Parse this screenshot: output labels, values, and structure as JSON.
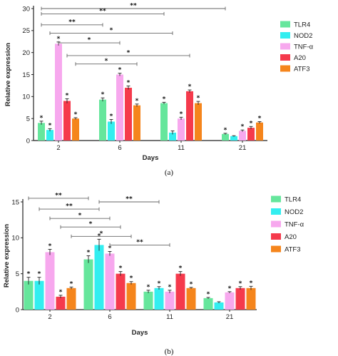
{
  "chart_data": [
    {
      "type": "bar",
      "panel_label": "(a)",
      "ylabel": "Relative expression",
      "xlabel": "Days",
      "categories": [
        "2",
        "6",
        "11",
        "21"
      ],
      "ylim": [
        0,
        30
      ],
      "yticks": [
        "0",
        "5",
        "10",
        "15",
        "20",
        "25",
        "30"
      ],
      "series": [
        {
          "name": "TLR4",
          "color": "#66e69c",
          "values": [
            4.0,
            9.3,
            8.5,
            1.5
          ],
          "errors": [
            0.4,
            0.4,
            0.2,
            0.15
          ],
          "stars": [
            "*",
            "*",
            "*",
            "*"
          ]
        },
        {
          "name": "NOD2",
          "color": "#33eef0",
          "values": [
            2.4,
            4.3,
            1.8,
            1.0
          ],
          "errors": [
            0.3,
            0.5,
            0.4,
            0.1
          ],
          "stars": [
            "*",
            "*",
            "",
            ""
          ]
        },
        {
          "name": "TNF-α",
          "color": "#f7a8ee",
          "values": [
            22.0,
            15.0,
            5.0,
            2.2
          ],
          "errors": [
            0.4,
            0.3,
            0.3,
            0.2
          ],
          "stars": [
            "*",
            "*",
            "*",
            "*"
          ]
        },
        {
          "name": "A20",
          "color": "#f53a4c",
          "values": [
            9.0,
            12.0,
            11.2,
            2.9
          ],
          "errors": [
            0.5,
            0.4,
            0.3,
            0.3
          ],
          "stars": [
            "*",
            "*",
            "*",
            "*"
          ]
        },
        {
          "name": "ATF3",
          "color": "#f5851c",
          "values": [
            5.0,
            8.0,
            8.5,
            4.1
          ],
          "errors": [
            0.2,
            0.3,
            0.4,
            0.2
          ],
          "stars": [
            "*",
            "*",
            "*",
            "*"
          ]
        }
      ],
      "comparisons": [
        {
          "from": {
            "cat": 0,
            "series": 0
          },
          "to": {
            "cat": 3,
            "series": 0
          },
          "label": "**",
          "level": 30
        },
        {
          "from": {
            "cat": 0,
            "series": 0
          },
          "to": {
            "cat": 2,
            "series": 0
          },
          "label": "**",
          "level": 28.8
        },
        {
          "from": {
            "cat": 0,
            "series": 0
          },
          "to": {
            "cat": 1,
            "series": 0
          },
          "label": "**",
          "level": 26.3
        },
        {
          "from": {
            "cat": 0,
            "series": 1
          },
          "to": {
            "cat": 2,
            "series": 1
          },
          "label": "*",
          "level": 24.4
        },
        {
          "from": {
            "cat": 0,
            "series": 2
          },
          "to": {
            "cat": 1,
            "series": 2
          },
          "label": "*",
          "level": 22.2
        },
        {
          "from": {
            "cat": 0,
            "series": 3
          },
          "to": {
            "cat": 2,
            "series": 3
          },
          "label": "*",
          "level": 19.3
        },
        {
          "from": {
            "cat": 0,
            "series": 4
          },
          "to": {
            "cat": 1,
            "series": 4
          },
          "label": "*",
          "level": 17.4
        }
      ]
    },
    {
      "type": "bar",
      "panel_label": "(b)",
      "ylabel": "Relative expression",
      "xlabel": "Days",
      "categories": [
        "2",
        "6",
        "11",
        "21"
      ],
      "ylim": [
        0,
        15
      ],
      "yticks": [
        "0",
        "5",
        "10",
        "15"
      ],
      "series": [
        {
          "name": "TLR4",
          "color": "#66e69c",
          "values": [
            4.0,
            7.0,
            2.5,
            1.6
          ],
          "errors": [
            0.5,
            0.5,
            0.2,
            0.1
          ],
          "stars": [
            "*",
            "*",
            "*",
            "*"
          ]
        },
        {
          "name": "NOD2",
          "color": "#33eef0",
          "values": [
            4.0,
            9.0,
            3.0,
            1.0
          ],
          "errors": [
            0.5,
            0.8,
            0.2,
            0.1
          ],
          "stars": [
            "*",
            "*",
            "*",
            ""
          ]
        },
        {
          "name": "TNF-α",
          "color": "#f7a8ee",
          "values": [
            8.0,
            7.8,
            2.5,
            2.4
          ],
          "errors": [
            0.4,
            0.3,
            0.2,
            0.1
          ],
          "stars": [
            "*",
            "*",
            "*",
            "*"
          ]
        },
        {
          "name": "A20",
          "color": "#f53a4c",
          "values": [
            1.8,
            5.0,
            5.0,
            3.0
          ],
          "errors": [
            0.2,
            0.3,
            0.3,
            0.2
          ],
          "stars": [
            "*",
            "*",
            "*",
            "*"
          ]
        },
        {
          "name": "ATF3",
          "color": "#f5851c",
          "values": [
            3.0,
            3.7,
            3.0,
            3.0
          ],
          "errors": [
            0.15,
            0.2,
            0.1,
            0.25
          ],
          "stars": [
            "*",
            "*",
            "*",
            "*"
          ]
        }
      ],
      "comparisons": [
        {
          "from": {
            "cat": 0,
            "series": 0
          },
          "to": {
            "cat": 1,
            "series": 0
          },
          "label": "**",
          "level": 15.5
        },
        {
          "from": {
            "cat": 1,
            "series": 1
          },
          "to": {
            "cat": 2,
            "series": 1
          },
          "label": "**",
          "level": 15.0
        },
        {
          "from": {
            "cat": 0,
            "series": 1
          },
          "to": {
            "cat": 1,
            "series": 1
          },
          "label": "**",
          "level": 14.0
        },
        {
          "from": {
            "cat": 0,
            "series": 2
          },
          "to": {
            "cat": 1,
            "series": 2
          },
          "label": "*",
          "level": 12.7
        },
        {
          "from": {
            "cat": 0,
            "series": 3
          },
          "to": {
            "cat": 1,
            "series": 3
          },
          "label": "*",
          "level": 11.5
        },
        {
          "from": {
            "cat": 0,
            "series": 4
          },
          "to": {
            "cat": 1,
            "series": 4
          },
          "label": "*",
          "level": 10.2
        },
        {
          "from": {
            "cat": 1,
            "series": 2
          },
          "to": {
            "cat": 2,
            "series": 2
          },
          "label": "**",
          "level": 9.0
        }
      ]
    }
  ]
}
